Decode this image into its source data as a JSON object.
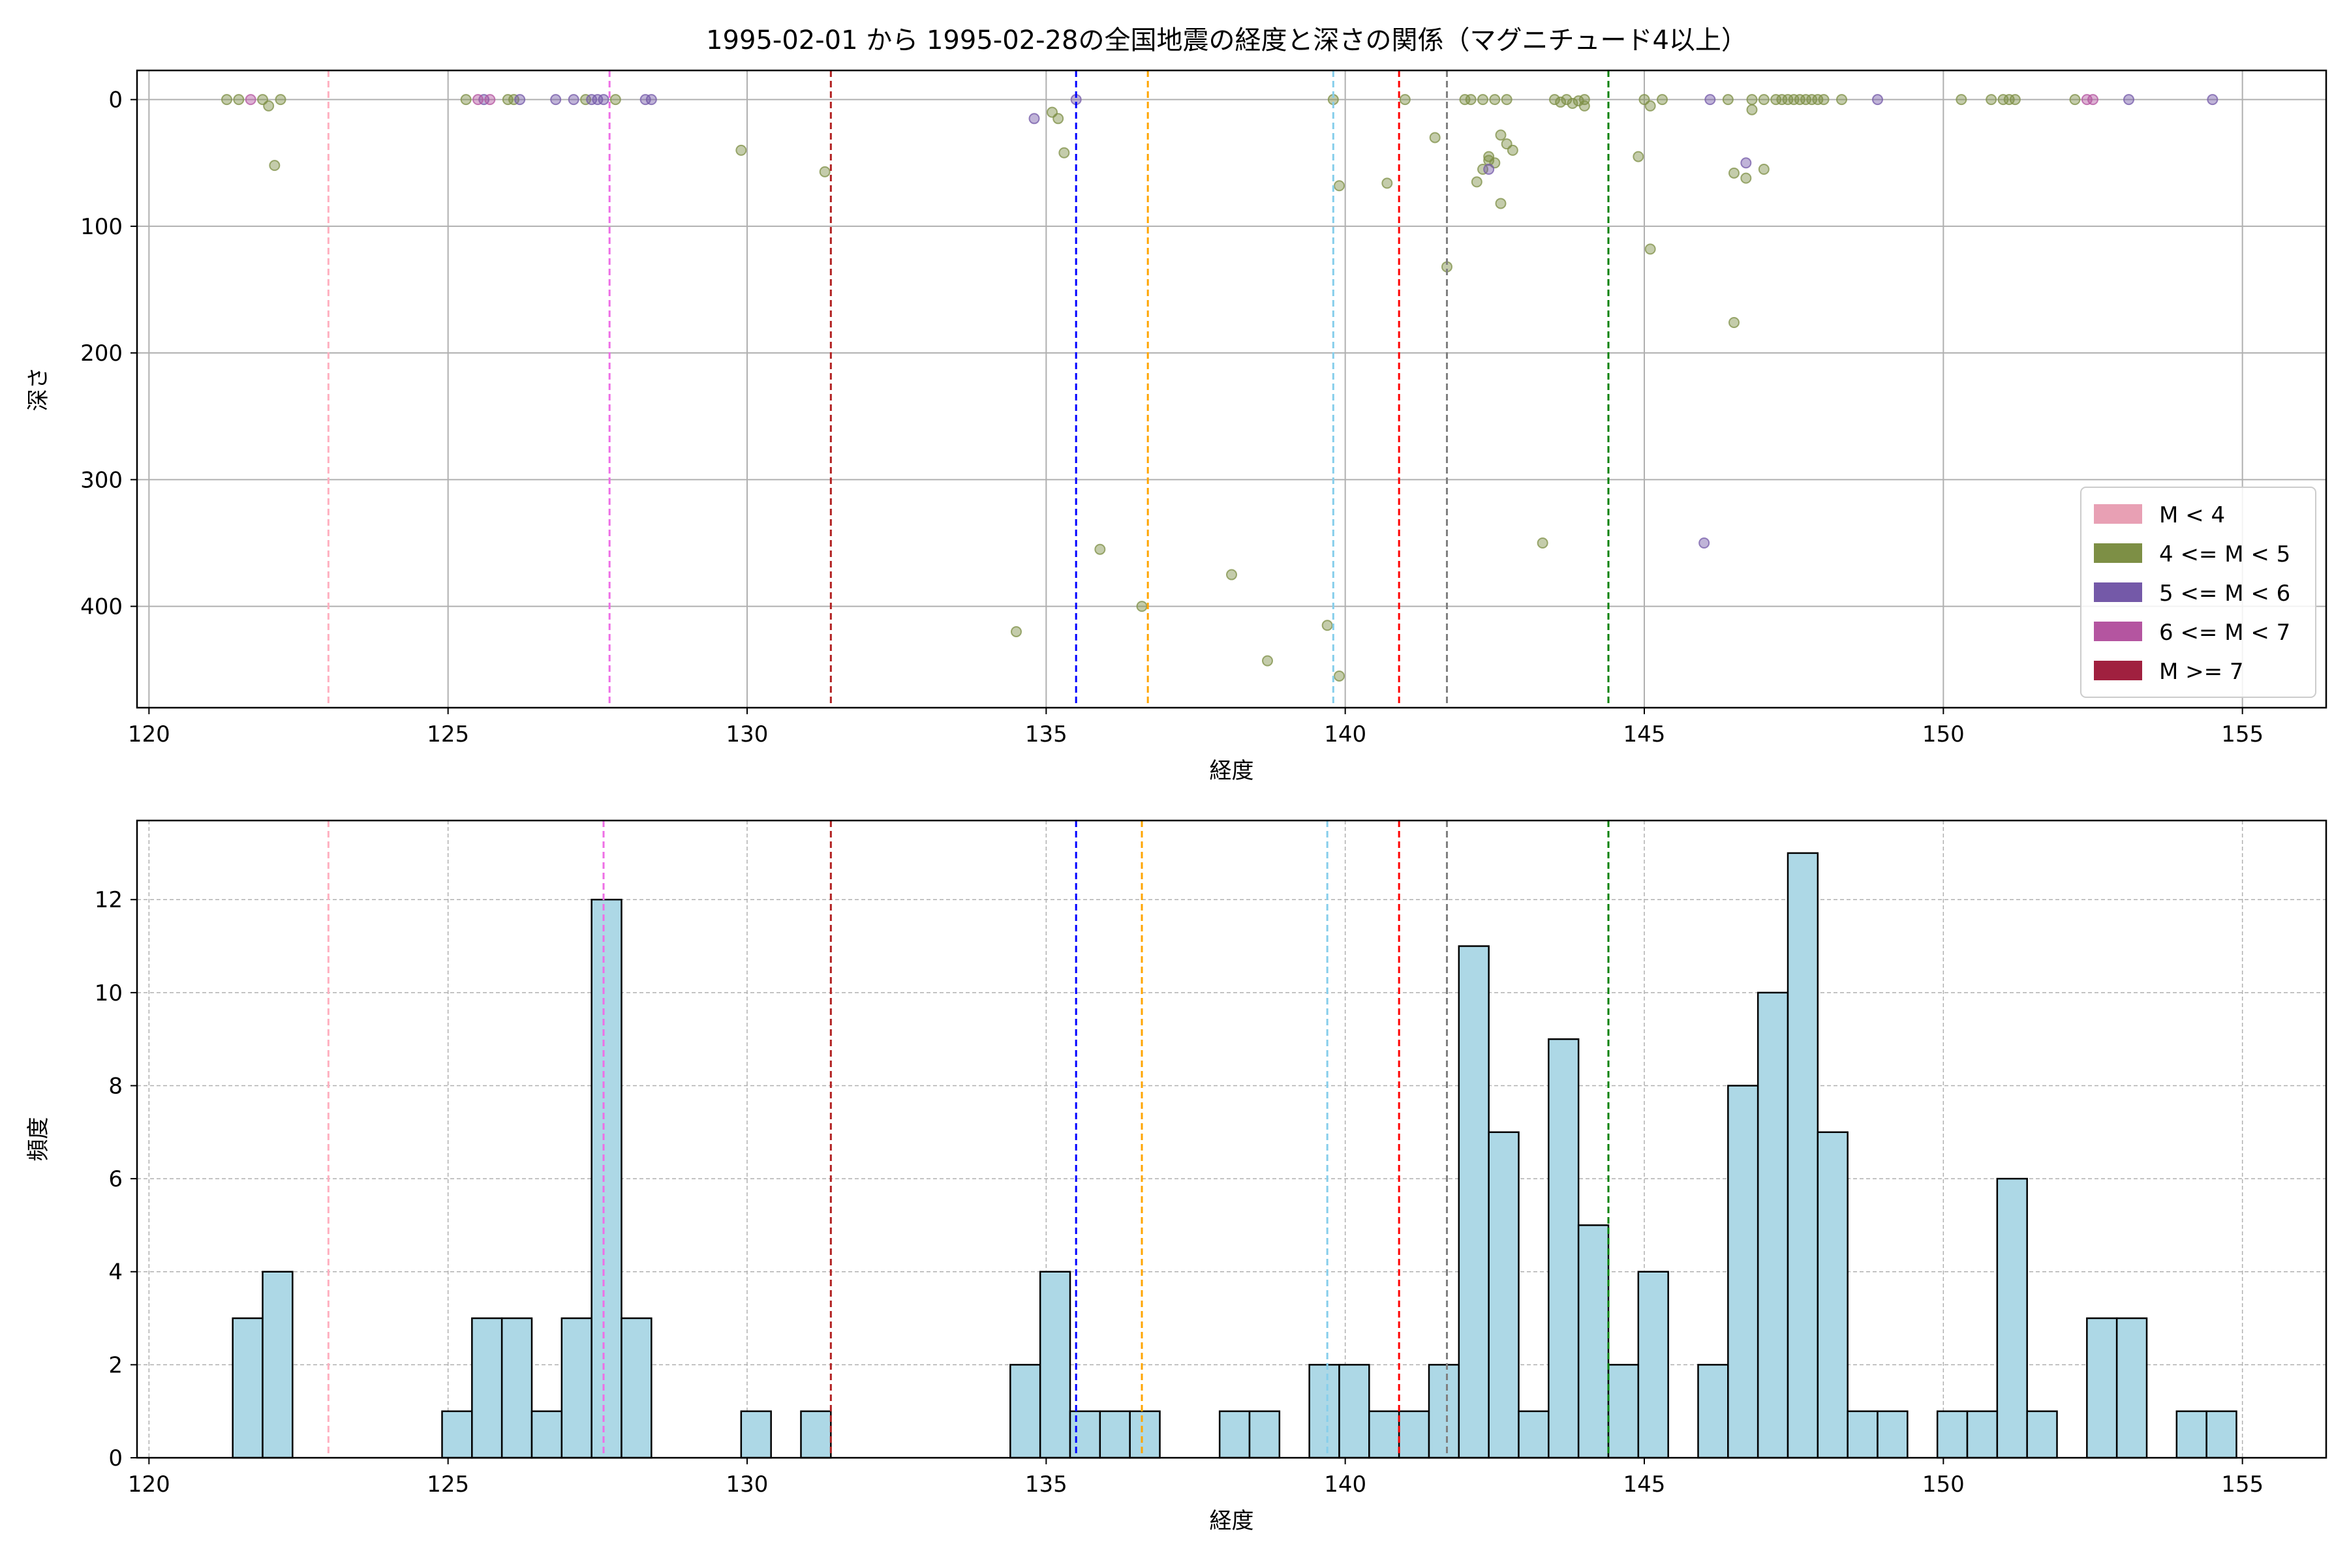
{
  "title": "1995-02-01 から 1995-02-28の全国地震の経度と深さの関係（マグニチュード4以上）",
  "chart_data": [
    {
      "type": "scatter",
      "xlabel": "経度",
      "ylabel": "深さ",
      "xlim": [
        119.8,
        156.4
      ],
      "ylim": [
        480,
        -23
      ],
      "y_inverted": true,
      "grid": true,
      "xticks": [
        "120",
        "125",
        "130",
        "135",
        "140",
        "145",
        "150",
        "155"
      ],
      "yticks": [
        "0",
        "100",
        "200",
        "300",
        "400"
      ],
      "legend_position": "lower-right",
      "legend": [
        {
          "label": "M < 4",
          "color": "#e8a0b4"
        },
        {
          "label": "4 <= M < 5",
          "color": "#7d8f45"
        },
        {
          "label": "5 <= M < 6",
          "color": "#7459a8"
        },
        {
          "label": "6 <= M < 7",
          "color": "#b455a0"
        },
        {
          "label": "M >= 7",
          "color": "#a0203f"
        }
      ],
      "series": [
        {
          "name": "4 <= M < 5",
          "color": "#7d8f45",
          "points": [
            [
              121.3,
              0
            ],
            [
              121.5,
              0
            ],
            [
              121.9,
              0
            ],
            [
              122.0,
              5
            ],
            [
              122.2,
              0
            ],
            [
              122.1,
              52
            ],
            [
              125.3,
              0
            ],
            [
              126.0,
              0
            ],
            [
              126.1,
              0
            ],
            [
              127.3,
              0
            ],
            [
              127.8,
              0
            ],
            [
              129.9,
              40
            ],
            [
              131.3,
              57
            ],
            [
              135.1,
              10
            ],
            [
              135.2,
              15
            ],
            [
              135.3,
              42
            ],
            [
              134.5,
              420
            ],
            [
              135.9,
              355
            ],
            [
              136.6,
              400
            ],
            [
              138.1,
              375
            ],
            [
              138.7,
              443
            ],
            [
              139.7,
              415
            ],
            [
              139.8,
              0
            ],
            [
              139.9,
              455
            ],
            [
              139.9,
              68
            ],
            [
              140.7,
              66
            ],
            [
              141.0,
              0
            ],
            [
              141.5,
              30
            ],
            [
              141.7,
              132
            ],
            [
              142.0,
              0
            ],
            [
              142.1,
              0
            ],
            [
              142.3,
              0
            ],
            [
              142.5,
              0
            ],
            [
              142.7,
              0
            ],
            [
              142.2,
              65
            ],
            [
              142.3,
              55
            ],
            [
              142.4,
              45
            ],
            [
              142.4,
              48
            ],
            [
              142.5,
              50
            ],
            [
              142.6,
              28
            ],
            [
              142.6,
              82
            ],
            [
              142.7,
              35
            ],
            [
              142.8,
              40
            ],
            [
              143.3,
              350
            ],
            [
              143.5,
              0
            ],
            [
              143.6,
              2
            ],
            [
              143.7,
              0
            ],
            [
              143.8,
              3
            ],
            [
              143.9,
              1
            ],
            [
              144.0,
              0
            ],
            [
              144.0,
              5
            ],
            [
              144.9,
              45
            ],
            [
              145.0,
              0
            ],
            [
              145.1,
              5
            ],
            [
              145.1,
              118
            ],
            [
              145.3,
              0
            ],
            [
              146.4,
              0
            ],
            [
              146.5,
              176
            ],
            [
              146.5,
              58
            ],
            [
              146.7,
              62
            ],
            [
              146.8,
              0
            ],
            [
              146.8,
              8
            ],
            [
              147.0,
              0
            ],
            [
              147.0,
              55
            ],
            [
              147.2,
              0
            ],
            [
              147.3,
              0
            ],
            [
              147.4,
              0
            ],
            [
              147.5,
              0
            ],
            [
              147.6,
              0
            ],
            [
              147.7,
              0
            ],
            [
              147.8,
              0
            ],
            [
              147.9,
              0
            ],
            [
              148.0,
              0
            ],
            [
              148.3,
              0
            ],
            [
              150.3,
              0
            ],
            [
              150.8,
              0
            ],
            [
              151.0,
              0
            ],
            [
              151.1,
              0
            ],
            [
              151.2,
              0
            ],
            [
              152.2,
              0
            ]
          ]
        },
        {
          "name": "5 <= M < 6",
          "color": "#7459a8",
          "points": [
            [
              125.6,
              0
            ],
            [
              126.2,
              0
            ],
            [
              126.8,
              0
            ],
            [
              127.1,
              0
            ],
            [
              127.4,
              0
            ],
            [
              127.5,
              0
            ],
            [
              127.6,
              0
            ],
            [
              128.3,
              0
            ],
            [
              128.4,
              0
            ],
            [
              134.8,
              15
            ],
            [
              135.5,
              0
            ],
            [
              142.4,
              55
            ],
            [
              146.0,
              350
            ],
            [
              146.1,
              0
            ],
            [
              146.7,
              50
            ],
            [
              148.9,
              0
            ],
            [
              153.1,
              0
            ],
            [
              154.5,
              0
            ]
          ]
        },
        {
          "name": "6 <= M < 7",
          "color": "#b455a0",
          "points": [
            [
              121.7,
              0
            ],
            [
              125.5,
              0
            ],
            [
              125.7,
              0
            ],
            [
              152.4,
              0
            ],
            [
              152.5,
              0
            ]
          ]
        }
      ],
      "vlines": [
        {
          "x": 123.0,
          "color": "#ffb0c0"
        },
        {
          "x": 127.7,
          "color": "#ee6ee6"
        },
        {
          "x": 131.4,
          "color": "#b22222"
        },
        {
          "x": 135.5,
          "color": "#0000ff"
        },
        {
          "x": 136.7,
          "color": "#ffa500"
        },
        {
          "x": 139.8,
          "color": "#87ceeb"
        },
        {
          "x": 140.9,
          "color": "#ff0000"
        },
        {
          "x": 141.7,
          "color": "#808080"
        },
        {
          "x": 144.4,
          "color": "#008000"
        }
      ]
    },
    {
      "type": "bar",
      "subtype": "histogram",
      "xlabel": "経度",
      "ylabel": "頻度",
      "xlim": [
        119.8,
        156.4
      ],
      "ylim": [
        0,
        13.7
      ],
      "grid": true,
      "bar_color": "#add8e6",
      "bar_edge_color": "#000000",
      "xticks": [
        "120",
        "125",
        "130",
        "135",
        "140",
        "145",
        "150",
        "155"
      ],
      "yticks": [
        "0",
        "2",
        "4",
        "6",
        "8",
        "10",
        "12"
      ],
      "bins": [
        {
          "x0": 121.4,
          "x1": 121.9,
          "count": 3
        },
        {
          "x0": 121.9,
          "x1": 122.4,
          "count": 4
        },
        {
          "x0": 124.9,
          "x1": 125.4,
          "count": 1
        },
        {
          "x0": 125.4,
          "x1": 125.9,
          "count": 3
        },
        {
          "x0": 125.9,
          "x1": 126.4,
          "count": 3
        },
        {
          "x0": 126.4,
          "x1": 126.9,
          "count": 1
        },
        {
          "x0": 126.9,
          "x1": 127.4,
          "count": 3
        },
        {
          "x0": 127.4,
          "x1": 127.9,
          "count": 12
        },
        {
          "x0": 127.9,
          "x1": 128.4,
          "count": 3
        },
        {
          "x0": 129.9,
          "x1": 130.4,
          "count": 1
        },
        {
          "x0": 130.9,
          "x1": 131.4,
          "count": 1
        },
        {
          "x0": 134.4,
          "x1": 134.9,
          "count": 2
        },
        {
          "x0": 134.9,
          "x1": 135.4,
          "count": 4
        },
        {
          "x0": 135.4,
          "x1": 135.9,
          "count": 1
        },
        {
          "x0": 135.9,
          "x1": 136.4,
          "count": 1
        },
        {
          "x0": 136.4,
          "x1": 136.9,
          "count": 1
        },
        {
          "x0": 137.9,
          "x1": 138.4,
          "count": 1
        },
        {
          "x0": 138.4,
          "x1": 138.9,
          "count": 1
        },
        {
          "x0": 139.4,
          "x1": 139.9,
          "count": 2
        },
        {
          "x0": 139.9,
          "x1": 140.4,
          "count": 2
        },
        {
          "x0": 140.4,
          "x1": 140.9,
          "count": 1
        },
        {
          "x0": 140.9,
          "x1": 141.4,
          "count": 1
        },
        {
          "x0": 141.4,
          "x1": 141.9,
          "count": 2
        },
        {
          "x0": 141.9,
          "x1": 142.4,
          "count": 11
        },
        {
          "x0": 142.4,
          "x1": 142.9,
          "count": 7
        },
        {
          "x0": 142.9,
          "x1": 143.4,
          "count": 1
        },
        {
          "x0": 143.4,
          "x1": 143.9,
          "count": 9
        },
        {
          "x0": 143.9,
          "x1": 144.4,
          "count": 5
        },
        {
          "x0": 144.4,
          "x1": 144.9,
          "count": 2
        },
        {
          "x0": 144.9,
          "x1": 145.4,
          "count": 4
        },
        {
          "x0": 145.9,
          "x1": 146.4,
          "count": 2
        },
        {
          "x0": 146.4,
          "x1": 146.9,
          "count": 8
        },
        {
          "x0": 146.9,
          "x1": 147.4,
          "count": 10
        },
        {
          "x0": 147.4,
          "x1": 147.9,
          "count": 13
        },
        {
          "x0": 147.9,
          "x1": 148.4,
          "count": 7
        },
        {
          "x0": 148.4,
          "x1": 148.9,
          "count": 1
        },
        {
          "x0": 148.9,
          "x1": 149.4,
          "count": 1
        },
        {
          "x0": 149.9,
          "x1": 150.4,
          "count": 1
        },
        {
          "x0": 150.4,
          "x1": 150.9,
          "count": 1
        },
        {
          "x0": 150.9,
          "x1": 151.4,
          "count": 6
        },
        {
          "x0": 151.4,
          "x1": 151.9,
          "count": 1
        },
        {
          "x0": 152.4,
          "x1": 152.9,
          "count": 3
        },
        {
          "x0": 152.9,
          "x1": 153.4,
          "count": 3
        },
        {
          "x0": 153.9,
          "x1": 154.4,
          "count": 1
        },
        {
          "x0": 154.4,
          "x1": 154.9,
          "count": 1
        }
      ],
      "vlines": [
        {
          "x": 123.0,
          "color": "#ffb0c0"
        },
        {
          "x": 127.6,
          "color": "#ee6ee6"
        },
        {
          "x": 131.4,
          "color": "#b22222"
        },
        {
          "x": 135.5,
          "color": "#0000ff"
        },
        {
          "x": 136.6,
          "color": "#ffa500"
        },
        {
          "x": 139.7,
          "color": "#87ceeb"
        },
        {
          "x": 140.9,
          "color": "#ff0000"
        },
        {
          "x": 141.7,
          "color": "#808080"
        },
        {
          "x": 144.4,
          "color": "#008000"
        }
      ]
    }
  ]
}
